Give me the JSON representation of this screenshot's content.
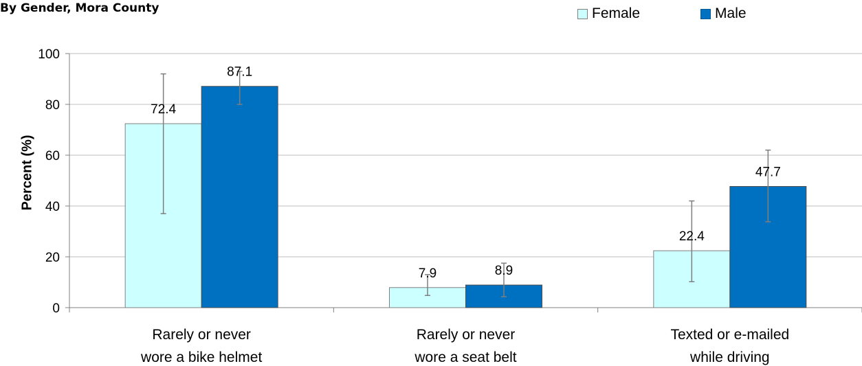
{
  "chart_data": {
    "type": "bar",
    "subtitle": "By Gender, Mora County",
    "ylabel": "Percent (%)",
    "ylim": [
      0,
      100
    ],
    "yticks": [
      0,
      20,
      40,
      60,
      80,
      100
    ],
    "grid": true,
    "legend_position": "top-right",
    "categories": [
      [
        "Rarely or never",
        "wore a bike helmet"
      ],
      [
        "Rarely or never",
        "wore a seat belt"
      ],
      [
        "Texted or e-mailed",
        "while driving"
      ]
    ],
    "series": [
      {
        "name": "Female",
        "color": "#ccffff",
        "values": [
          72.4,
          7.9,
          22.4
        ],
        "error_low": [
          37,
          4.8,
          10.2
        ],
        "error_high": [
          92,
          13,
          42
        ]
      },
      {
        "name": "Male",
        "color": "#0070c0",
        "values": [
          87.1,
          8.9,
          47.7
        ],
        "error_low": [
          80,
          4.3,
          33.8
        ],
        "error_high": [
          93,
          17.5,
          62
        ]
      }
    ]
  }
}
